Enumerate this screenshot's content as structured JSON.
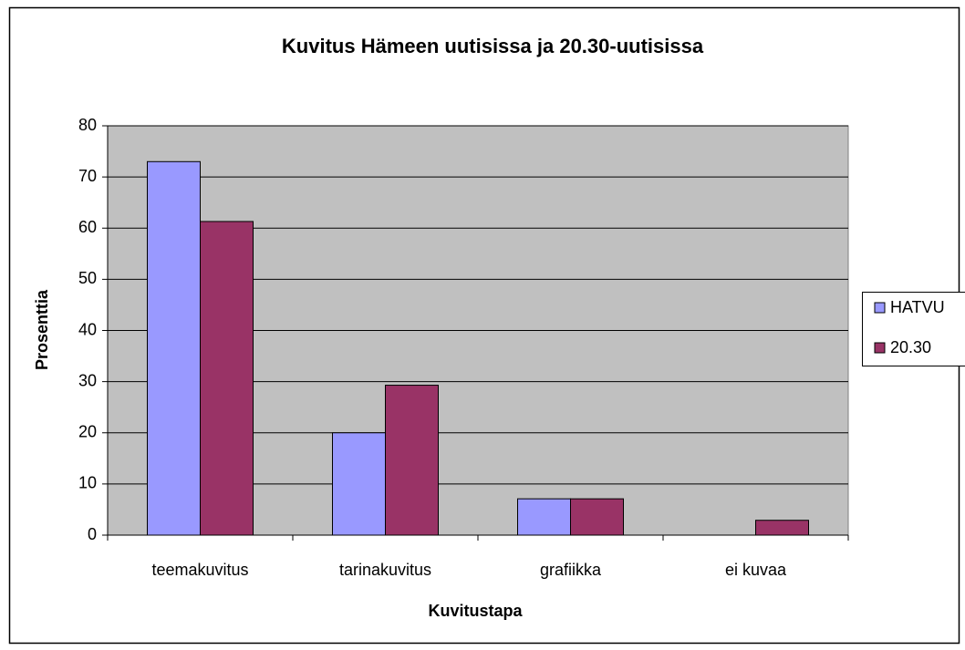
{
  "chart_data": {
    "type": "bar",
    "title": "Kuvitus Hämeen uutisissa ja 20.30-uutisissa",
    "x_label": "Kuvitustapa",
    "y_label": "Prosenttia",
    "categories": [
      "teemakuvitus",
      "tarinakuvitus",
      "grafiikka",
      "ei kuvaa"
    ],
    "series": [
      {
        "name": "HATVU",
        "color": "#9999ff",
        "values": [
          73,
          20,
          7.1,
          0
        ]
      },
      {
        "name": "20.30",
        "color": "#993366",
        "values": [
          61.3,
          29.3,
          7.1,
          2.9
        ]
      }
    ],
    "ylim": [
      0,
      80
    ],
    "yticks": [
      0,
      10,
      20,
      30,
      40,
      50,
      60,
      70,
      80
    ],
    "grid": true,
    "legend": "right",
    "plot_background": "#c0c0c0"
  }
}
